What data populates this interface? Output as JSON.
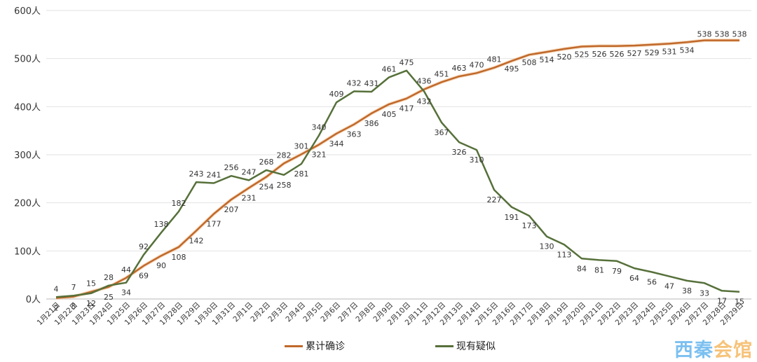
{
  "chart_data": {
    "type": "line",
    "title": "",
    "xlabel": "",
    "ylabel": "",
    "ylim": [
      0,
      600
    ],
    "yticks": [
      "0人",
      "100人",
      "200人",
      "300人",
      "400人",
      "500人",
      "600人"
    ],
    "ytick_values": [
      0,
      100,
      200,
      300,
      400,
      500,
      600
    ],
    "grid": true,
    "legend_position": "bottom",
    "categories": [
      "1月21日",
      "1月22日",
      "1月23日",
      "1月24日",
      "1月25日",
      "1月26日",
      "1月27日",
      "1月28日",
      "1月29日",
      "1月30日",
      "1月31日",
      "2月1日",
      "2月2日",
      "2月3日",
      "2月4日",
      "2月5日",
      "2月6日",
      "2月7日",
      "2月8日",
      "2月9日",
      "2月10日",
      "2月11日",
      "2月12日",
      "2月13日",
      "2月14日",
      "2月15日",
      "2月16日",
      "2月17日",
      "2月18日",
      "2月19日",
      "2月20日",
      "2月21日",
      "2月22日",
      "2月23日",
      "2月24日",
      "2月25日",
      "2月26日",
      "2月27日",
      "2月28日",
      "2月29日"
    ],
    "series": [
      {
        "name": "累计确诊",
        "color": "#c0682a",
        "values": [
          2,
          5,
          15,
          25,
          44,
          69,
          90,
          108,
          142,
          177,
          207,
          231,
          254,
          282,
          301,
          321,
          344,
          363,
          386,
          405,
          417,
          436,
          451,
          463,
          470,
          481,
          495,
          508,
          514,
          520,
          525,
          526,
          526,
          527,
          529,
          531,
          534,
          538,
          538,
          538
        ]
      },
      {
        "name": "现有疑似",
        "color": "#56703a",
        "values": [
          4,
          7,
          12,
          28,
          34,
          92,
          138,
          182,
          243,
          241,
          256,
          247,
          268,
          258,
          281,
          340,
          409,
          432,
          431,
          461,
          475,
          432,
          367,
          326,
          310,
          227,
          191,
          173,
          130,
          113,
          84,
          81,
          79,
          64,
          56,
          47,
          38,
          33,
          17,
          15
        ]
      }
    ]
  },
  "legend": {
    "items": [
      {
        "label": "累计确诊",
        "color": "#c0682a"
      },
      {
        "label": "现有疑似",
        "color": "#56703a"
      }
    ]
  },
  "watermark": {
    "part1": "西秦",
    "part2": "会馆"
  }
}
